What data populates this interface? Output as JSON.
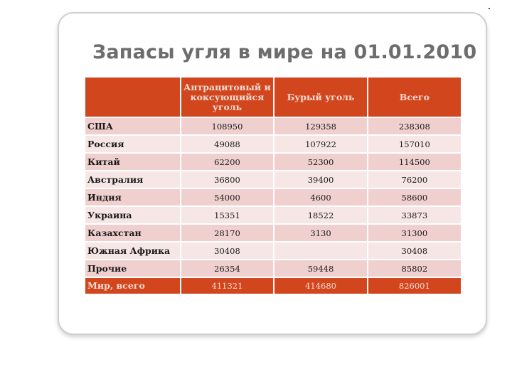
{
  "title": "Запасы угля в мире на 01.01.2010",
  "table": {
    "headers": [
      "",
      "Антрацитовый и коксующийся уголь",
      "Бурый уголь",
      "Всего"
    ],
    "rows": [
      {
        "country": "США",
        "anthracite": "108950",
        "brown": "129358",
        "total": "238308"
      },
      {
        "country": "Россия",
        "anthracite": "49088",
        "brown": "107922",
        "total": "157010"
      },
      {
        "country": "Китай",
        "anthracite": "62200",
        "brown": "52300",
        "total": "114500"
      },
      {
        "country": "Австралия",
        "anthracite": "36800",
        "brown": "39400",
        "total": "76200"
      },
      {
        "country": "Индия",
        "anthracite": "54000",
        "brown": "4600",
        "total": "58600"
      },
      {
        "country": "Украина",
        "anthracite": "15351",
        "brown": "18522",
        "total": "33873"
      },
      {
        "country": "Казахстан",
        "anthracite": "28170",
        "brown": "3130",
        "total": "31300"
      },
      {
        "country": "Южная Африка",
        "anthracite": "30408",
        "brown": "",
        "total": "30408"
      },
      {
        "country": "Прочие",
        "anthracite": "26354",
        "brown": "59448",
        "total": "85802"
      }
    ],
    "footer": {
      "country": "Мир, всего",
      "anthracite": "411321",
      "brown": "414680",
      "total": "826001"
    }
  },
  "colors": {
    "header_bg": "#d2461e",
    "row_odd": "#f0d0cf",
    "row_even": "#f7e6e6",
    "title_text": "#6d6d6d"
  }
}
